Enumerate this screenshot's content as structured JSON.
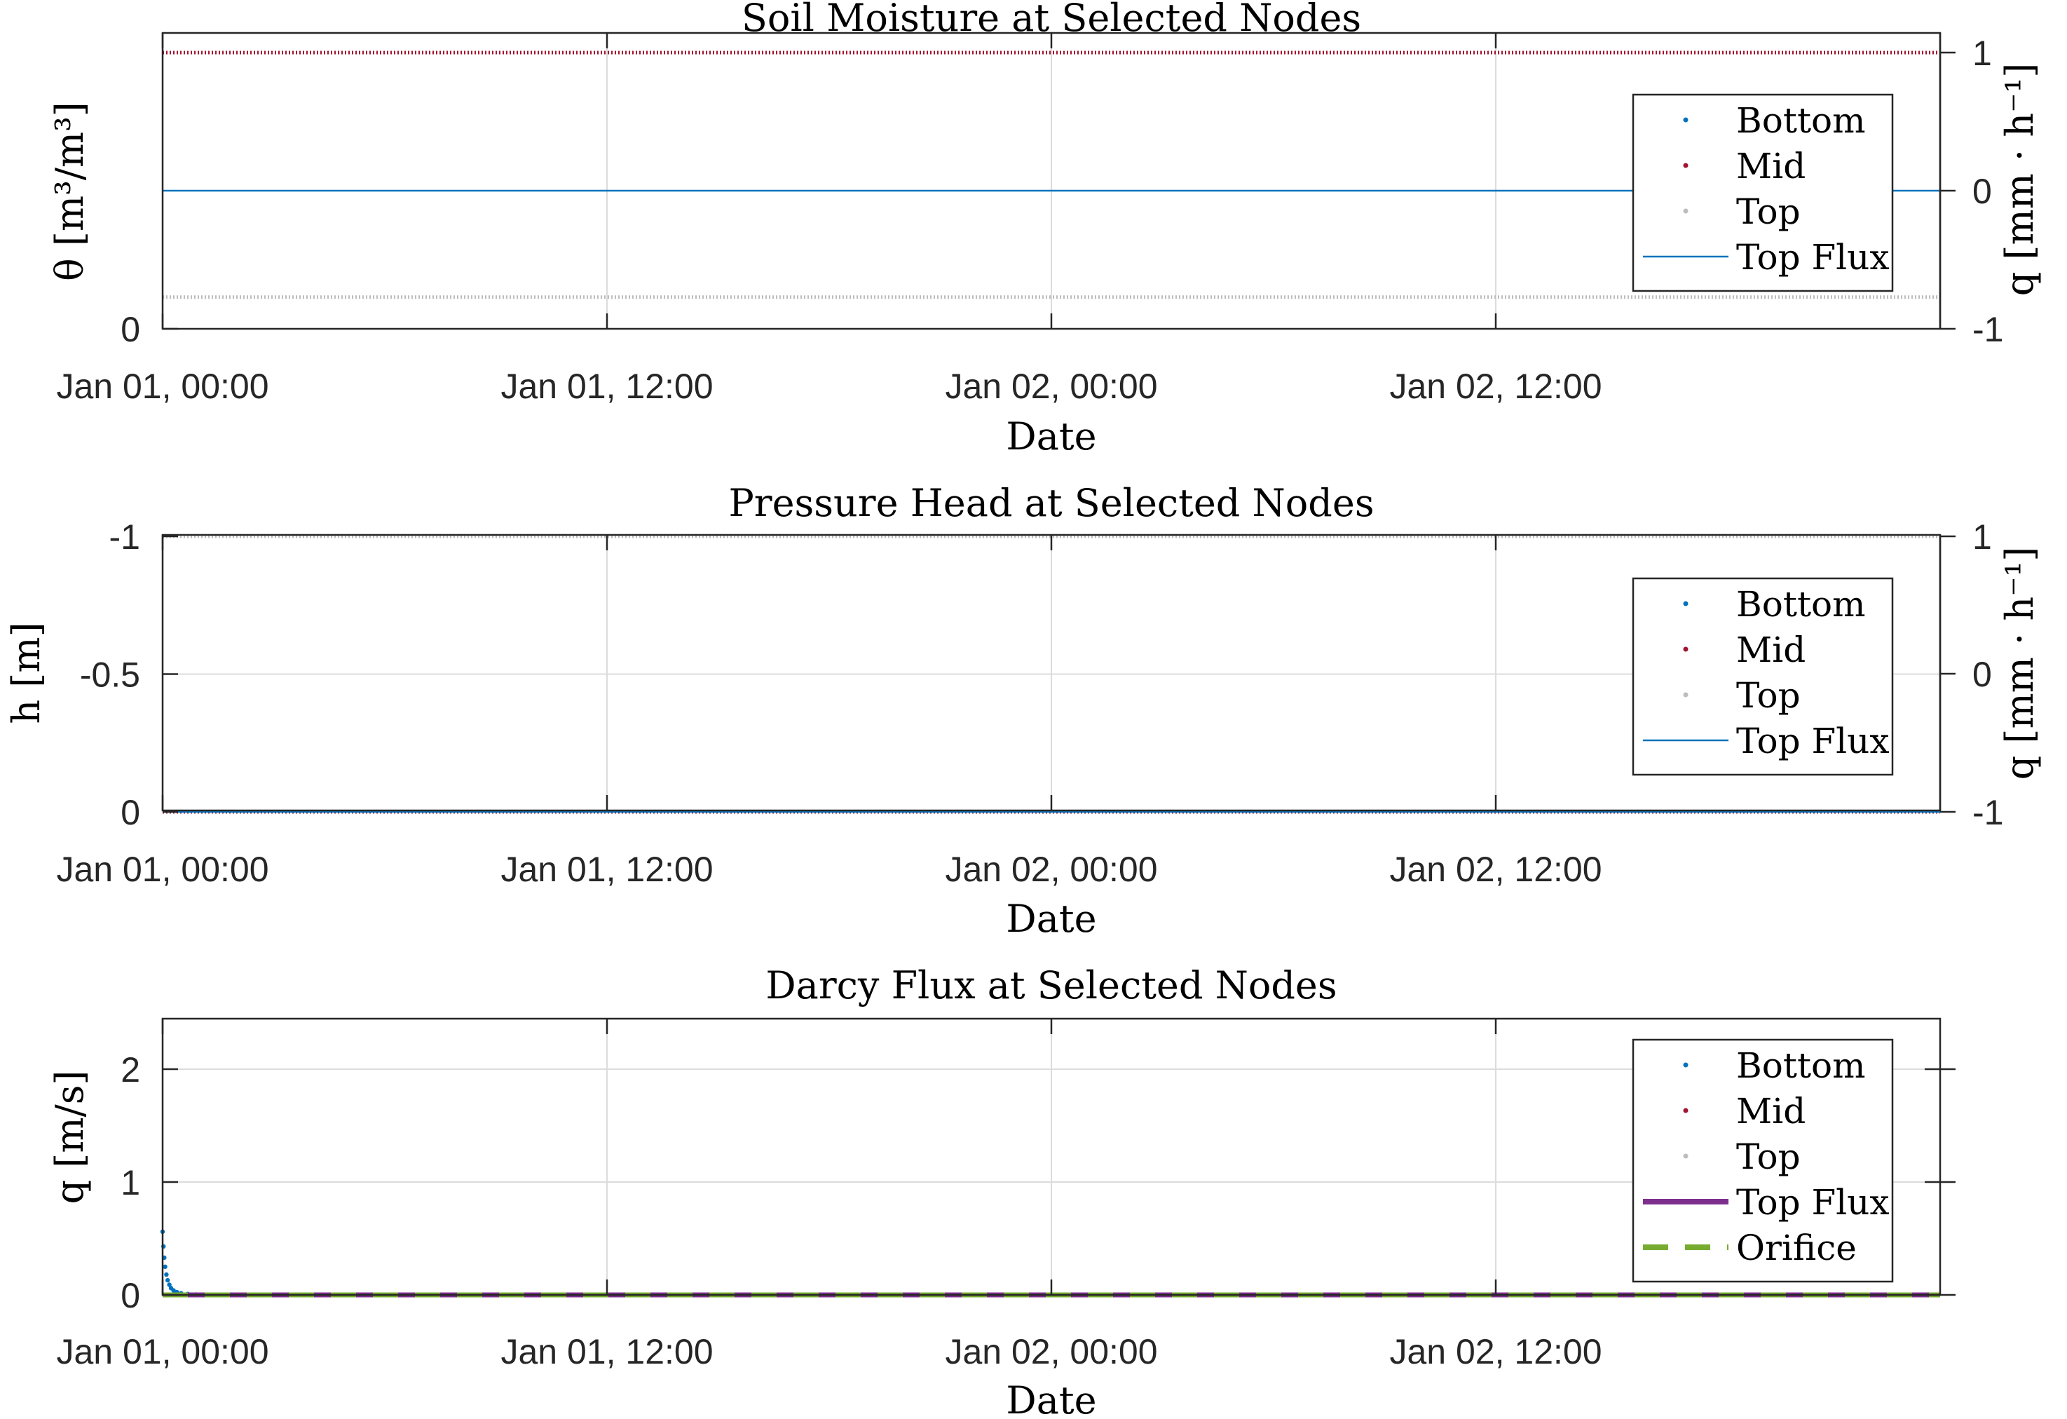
{
  "chart_data": [
    {
      "type": "scatter",
      "title": "Soil Moisture at Selected Nodes",
      "xlabel": "Date",
      "ylabel": "θ [m³/m³]",
      "ylabel_right": "q [mm · h⁻¹]",
      "x_range": [
        "Jan 01, 00:00",
        "Jan 03, 00:00"
      ],
      "x_tick_labels": [
        "Jan 01, 00:00",
        "Jan 01, 12:00",
        "Jan 02, 00:00",
        "Jan 02, 12:00"
      ],
      "y_left_ticks": [
        "0"
      ],
      "y_right_range": [
        -1,
        1
      ],
      "y_right_ticks": [
        "-1",
        "0",
        "1"
      ],
      "grid": true,
      "legend_position": "upper-right",
      "series": [
        {
          "name": "Bottom",
          "kind": "dots",
          "color": "#0072bd",
          "y_right_equiv": 1.0
        },
        {
          "name": "Mid",
          "kind": "dots",
          "color": "#a2142f",
          "y_right_equiv": 1.0
        },
        {
          "name": "Top",
          "kind": "dots",
          "color": "#bdbdbd",
          "y_right_equiv": -0.77
        },
        {
          "name": "Top Flux",
          "kind": "line",
          "color": "#0072bd",
          "axis": "right",
          "value": 0
        }
      ]
    },
    {
      "type": "scatter",
      "title": "Pressure Head at Selected Nodes",
      "xlabel": "Date",
      "ylabel": "h [m]",
      "ylabel_right": "q [mm · h⁻¹]",
      "x_range": [
        "Jan 01, 00:00",
        "Jan 03, 00:00"
      ],
      "x_tick_labels": [
        "Jan 01, 00:00",
        "Jan 01, 12:00",
        "Jan 02, 00:00",
        "Jan 02, 12:00"
      ],
      "ylim": [
        -1,
        0
      ],
      "y_left_ticks": [
        "-1",
        "-0.5",
        "0"
      ],
      "y_right_range": [
        -1,
        1
      ],
      "y_right_ticks": [
        "-1",
        "0",
        "1"
      ],
      "grid": true,
      "legend_position": "upper-right",
      "series": [
        {
          "name": "Bottom",
          "kind": "dots",
          "color": "#0072bd",
          "value": 0
        },
        {
          "name": "Mid",
          "kind": "dots",
          "color": "#a2142f",
          "value": 0
        },
        {
          "name": "Top",
          "kind": "dots",
          "color": "#bdbdbd",
          "value": -1
        },
        {
          "name": "Top Flux",
          "kind": "line",
          "color": "#0072bd",
          "axis": "right",
          "value": 0
        }
      ]
    },
    {
      "type": "scatter",
      "title": "Darcy Flux at Selected Nodes",
      "xlabel": "Date",
      "ylabel": "q [m/s]",
      "x_range": [
        "Jan 01, 00:00",
        "Jan 03, 00:00"
      ],
      "x_tick_labels": [
        "Jan 01, 00:00",
        "Jan 01, 12:00",
        "Jan 02, 00:00",
        "Jan 02, 12:00"
      ],
      "ylim": [
        0,
        2.45
      ],
      "y_left_ticks": [
        "0",
        "1",
        "2"
      ],
      "grid": true,
      "legend_position": "upper-right",
      "series": [
        {
          "name": "Bottom",
          "kind": "dots",
          "color": "#0072bd",
          "points": [
            [
              0,
              0.56
            ],
            [
              0.01,
              0.43
            ],
            [
              0.02,
              0.33
            ],
            [
              0.03,
              0.25
            ],
            [
              0.045,
              0.18
            ],
            [
              0.06,
              0.13
            ],
            [
              0.08,
              0.09
            ],
            [
              0.1,
              0.06
            ],
            [
              0.13,
              0.04
            ],
            [
              0.17,
              0.025
            ],
            [
              0.22,
              0.015
            ],
            [
              0.3,
              0.008
            ],
            [
              0.4,
              0.004
            ],
            [
              0.6,
              0.002
            ],
            [
              1.0,
              0.001
            ]
          ]
        },
        {
          "name": "Mid",
          "kind": "dots",
          "color": "#a2142f",
          "value": 0
        },
        {
          "name": "Top",
          "kind": "dots",
          "color": "#bdbdbd",
          "value": 0
        },
        {
          "name": "Top Flux",
          "kind": "line",
          "color": "#7e2f8e",
          "value": 0
        },
        {
          "name": "Orifice",
          "kind": "dashed",
          "color": "#77ac30",
          "value": 0
        }
      ]
    }
  ]
}
